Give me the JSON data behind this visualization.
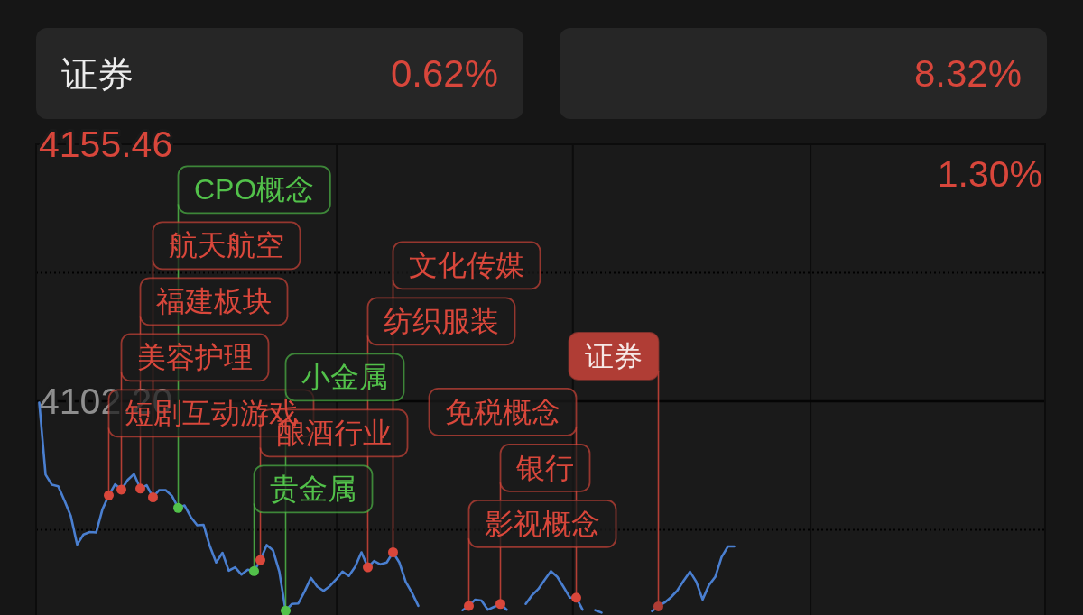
{
  "chart_data": [
    {
      "type": "other",
      "categories": [
        "证券",
        null
      ],
      "annotations": [
        "0.62%",
        "8.32%"
      ]
    },
    {
      "type": "line",
      "categories": [
        null,
        null,
        null,
        null,
        null,
        null,
        null,
        null,
        null,
        null,
        null,
        null,
        null,
        null,
        null,
        null,
        null,
        null,
        null,
        null,
        null,
        null,
        null,
        null,
        null,
        null,
        null,
        null,
        null,
        null,
        null,
        null,
        null,
        null,
        null,
        null,
        null,
        null,
        null,
        null,
        null,
        null,
        null,
        null,
        null,
        null,
        null,
        null,
        null,
        null,
        null,
        null,
        null,
        null,
        null,
        null,
        null,
        null,
        null,
        null,
        null,
        null,
        null,
        null,
        null,
        null,
        null,
        null,
        null,
        null,
        null,
        null,
        null,
        null,
        null,
        null,
        null,
        null,
        null,
        null,
        null,
        null,
        null,
        null,
        null,
        null,
        null,
        null,
        null,
        null,
        null,
        null,
        null,
        null,
        null,
        null,
        null,
        null,
        null,
        null,
        null,
        null,
        null,
        null,
        null,
        null,
        null,
        null,
        null,
        null,
        null,
        null,
        null,
        null,
        null,
        null,
        null,
        null,
        null,
        null,
        null,
        null,
        null,
        null,
        null,
        null,
        null,
        null,
        null,
        null,
        null,
        null,
        null,
        null,
        null,
        null,
        null,
        null,
        null,
        null,
        null,
        null,
        null,
        null,
        null,
        null,
        null,
        null,
        null,
        null,
        null,
        null,
        null,
        null,
        null,
        null,
        null,
        null,
        null,
        null
      ],
      "ylim": [
        4057.91,
        4155.46
      ],
      "yticks": [
        {
          "value": 4075.57,
          "label": null
        },
        {
          "value": 4102.2,
          "label": "4102.20"
        },
        {
          "value": 4128.83,
          "label": null
        },
        {
          "value": 4155.46,
          "label": "4155.46"
        }
      ],
      "grid": true,
      "tick_labels": "y",
      "ref_lines": [
        {
          "axis": "y",
          "value": 4102.2,
          "line_style": "solid"
        }
      ],
      "annotations": [
        "1.30%"
      ],
      "series": [
        {
          "color": "#4a7fd0",
          "values": [
            4101.9,
            4087.0,
            4084.9,
            4084.6,
            4081.6,
            4078.4,
            4072.5,
            4074.6,
            4075.1,
            4075.0,
            4079.8,
            4082.7,
            4085.0,
            4083.9,
            4085.9,
            4087.1,
            4084.1,
            4084.8,
            4082.3,
            4083.8,
            4083.8,
            4082.6,
            4080.1,
            4080.6,
            4078.2,
            4076.5,
            4076.6,
            4072.2,
            4068.8,
            4070.8,
            4067.1,
            4067.8,
            4066.3,
            4067.3,
            4067.0,
            4069.3,
            4072.4,
            4071.3,
            4066.9,
            4058.8,
            4060.2,
            4060.3,
            4062.8,
            4065.6,
            4063.8,
            4062.9,
            4063.9,
            4065.3,
            4066.9,
            4066.0,
            4067.9,
            4070.9,
            4067.8,
            4069.1,
            4068.4,
            4068.8,
            4070.9,
            4068.8,
            4064.8,
            4062.5,
            4059.8,
            null,
            null,
            null,
            null,
            null,
            null,
            4058.9,
            4059.8,
            4061.1,
            4060.9,
            4059.0,
            4059.6,
            4060.2,
            4059.0,
            null,
            null,
            4060.2,
            4062.0,
            4063.3,
            4065.2,
            4067.0,
            4065.8,
            4063.7,
            4061.5,
            4061.5,
            4059.0,
            null,
            4058.9,
            4058.4,
            null,
            null,
            null,
            null,
            null,
            null,
            null,
            4058.7,
            4059.7,
            4060.5,
            4061.6,
            4063.0,
            4065.0,
            4066.9,
            4064.8,
            4061.1,
            4064.1,
            4065.8,
            4069.9,
            4072.1,
            4072.1,
            null,
            null,
            null,
            null,
            null,
            null,
            null,
            null,
            null,
            null,
            null,
            null,
            null,
            null,
            null,
            null,
            null,
            null,
            null,
            null,
            null,
            null,
            null,
            null,
            null,
            null,
            null,
            null,
            null,
            null,
            null,
            null,
            null,
            null,
            null,
            null,
            null,
            null,
            null,
            null,
            null,
            null,
            null,
            null,
            null,
            null,
            null,
            null,
            null
          ]
        },
        {
          "type": "scatter",
          "color": "#d9473b",
          "values": [
            null,
            null,
            null,
            null,
            null,
            null,
            null,
            null,
            null,
            null,
            null,
            4082.7,
            null,
            4083.9,
            null,
            null,
            4084.1,
            null,
            4082.3,
            null,
            null,
            null,
            null,
            null,
            null,
            null,
            null,
            null,
            null,
            null,
            null,
            null,
            null,
            null,
            null,
            4069.3,
            null,
            null,
            null,
            null,
            null,
            null,
            null,
            null,
            null,
            null,
            null,
            null,
            null,
            null,
            null,
            null,
            4067.8,
            null,
            null,
            null,
            4070.9,
            null,
            null,
            null,
            null,
            null,
            null,
            null,
            null,
            null,
            null,
            null,
            4059.8,
            null,
            null,
            null,
            null,
            4060.2,
            null,
            null,
            null,
            null,
            null,
            null,
            null,
            null,
            null,
            null,
            null,
            4061.5,
            null,
            null,
            null,
            null,
            null,
            null,
            null,
            null,
            null,
            null,
            null,
            null,
            null,
            null,
            null,
            null,
            null,
            null,
            null,
            null,
            null,
            null,
            null,
            null,
            null,
            null,
            null,
            null,
            null,
            null,
            null,
            null,
            null,
            null,
            null,
            null,
            null,
            null,
            null,
            null,
            null,
            null,
            null,
            null,
            null,
            null,
            null,
            null,
            null,
            null,
            null,
            null,
            null,
            null,
            null,
            null,
            null,
            null,
            null,
            null,
            null,
            null,
            null,
            null,
            null,
            null,
            null,
            null,
            null,
            null,
            null,
            null,
            null,
            null
          ],
          "value_labels": [
            null,
            null,
            null,
            null,
            null,
            null,
            null,
            null,
            null,
            null,
            null,
            "短剧互动游戏",
            null,
            "美容护理",
            null,
            null,
            "福建板块",
            null,
            "航天航空",
            null,
            null,
            null,
            null,
            null,
            null,
            null,
            null,
            null,
            null,
            null,
            null,
            null,
            null,
            null,
            null,
            "酿酒行业",
            null,
            null,
            null,
            null,
            null,
            null,
            null,
            null,
            null,
            null,
            null,
            null,
            null,
            null,
            null,
            null,
            "纺织服装",
            null,
            null,
            null,
            "文化传媒",
            null,
            null,
            null,
            null,
            null,
            null,
            null,
            null,
            null,
            null,
            null,
            "影视概念",
            null,
            null,
            null,
            null,
            "银行",
            null,
            null,
            null,
            null,
            null,
            null,
            null,
            null,
            null,
            null,
            null,
            "免税概念",
            null,
            null,
            null,
            null,
            null,
            null,
            null,
            null,
            null,
            null,
            null,
            null,
            null,
            null,
            null,
            null,
            null,
            null,
            null,
            null,
            null,
            null,
            null,
            null,
            null,
            null,
            null,
            null,
            null,
            null,
            null,
            null,
            null,
            null,
            null,
            null,
            null,
            null,
            null,
            null,
            null,
            null,
            null,
            null,
            null,
            null,
            null,
            null,
            null,
            null,
            null,
            null,
            null,
            null,
            null,
            null,
            null,
            null,
            null,
            null,
            null,
            null,
            null,
            null,
            null,
            null,
            null,
            null,
            null,
            null,
            null,
            null,
            null,
            null
          ]
        },
        {
          "type": "scatter",
          "color": "#52c14a",
          "values": [
            null,
            null,
            null,
            null,
            null,
            null,
            null,
            null,
            null,
            null,
            null,
            null,
            null,
            null,
            null,
            null,
            null,
            null,
            null,
            null,
            null,
            null,
            4080.1,
            null,
            null,
            null,
            null,
            null,
            null,
            null,
            null,
            null,
            null,
            null,
            4067.0,
            null,
            null,
            null,
            null,
            4058.8,
            null,
            null,
            null,
            null,
            null,
            null,
            null,
            null,
            null,
            null,
            null,
            null,
            null,
            null,
            null,
            null,
            null,
            null,
            null,
            null,
            null,
            null,
            null,
            null,
            null,
            null,
            null,
            null,
            null,
            null,
            null,
            null,
            null,
            null,
            null,
            null,
            null,
            null,
            null,
            null,
            null,
            null,
            null,
            null,
            null,
            null,
            null,
            null,
            null,
            null,
            null,
            null,
            null,
            null,
            null,
            null,
            null,
            null,
            null,
            null,
            null,
            null,
            null,
            null,
            null,
            null,
            null,
            null,
            null,
            null,
            null,
            null,
            null,
            null,
            null,
            null,
            null,
            null,
            null,
            null,
            null,
            null,
            null,
            null,
            null,
            null,
            null,
            null,
            null,
            null,
            null,
            null,
            null,
            null,
            null,
            null,
            null,
            null,
            null,
            null,
            null,
            null,
            null,
            null,
            null,
            null,
            null,
            null,
            null,
            null,
            null,
            null,
            null,
            null,
            null,
            null,
            null,
            null,
            null,
            null
          ],
          "value_labels": [
            null,
            null,
            null,
            null,
            null,
            null,
            null,
            null,
            null,
            null,
            null,
            null,
            null,
            null,
            null,
            null,
            null,
            null,
            null,
            null,
            null,
            null,
            "CPO概念",
            null,
            null,
            null,
            null,
            null,
            null,
            null,
            null,
            null,
            null,
            null,
            "贵金属",
            null,
            null,
            null,
            null,
            "小金属",
            null,
            null,
            null,
            null,
            null,
            null,
            null,
            null,
            null,
            null,
            null,
            null,
            null,
            null,
            null,
            null,
            null,
            null,
            null,
            null,
            null,
            null,
            null,
            null,
            null,
            null,
            null,
            null,
            null,
            null,
            null,
            null,
            null,
            null,
            null,
            null,
            null,
            null,
            null,
            null,
            null,
            null,
            null,
            null,
            null,
            null,
            null,
            null,
            null,
            null,
            null,
            null,
            null,
            null,
            null,
            null,
            null,
            null,
            null,
            null,
            null,
            null,
            null,
            null,
            null,
            null,
            null,
            null,
            null,
            null,
            null,
            null,
            null,
            null,
            null,
            null,
            null,
            null,
            null,
            null,
            null,
            null,
            null,
            null,
            null,
            null,
            null,
            null,
            null,
            null,
            null,
            null,
            null,
            null,
            null,
            null,
            null,
            null,
            null,
            null,
            null,
            null,
            null,
            null,
            null,
            null,
            null,
            null,
            null,
            null,
            null,
            null,
            null,
            null,
            null,
            null,
            null,
            null,
            null,
            null
          ]
        },
        {
          "type": "scatter",
          "color": "#d9473b",
          "values": [
            null,
            null,
            null,
            null,
            null,
            null,
            null,
            null,
            null,
            null,
            null,
            null,
            null,
            null,
            null,
            null,
            null,
            null,
            null,
            null,
            null,
            null,
            null,
            null,
            null,
            null,
            null,
            null,
            null,
            null,
            null,
            null,
            null,
            null,
            null,
            null,
            null,
            null,
            null,
            null,
            null,
            null,
            null,
            null,
            null,
            null,
            null,
            null,
            null,
            null,
            null,
            null,
            null,
            null,
            null,
            null,
            null,
            null,
            null,
            null,
            null,
            null,
            null,
            null,
            null,
            null,
            null,
            null,
            null,
            null,
            null,
            null,
            null,
            null,
            null,
            null,
            null,
            null,
            null,
            null,
            null,
            null,
            null,
            null,
            null,
            null,
            null,
            null,
            null,
            null,
            null,
            null,
            null,
            null,
            null,
            null,
            null,
            null,
            4059.7,
            null,
            null,
            null,
            null,
            null,
            null,
            null,
            null,
            null,
            null,
            null,
            null,
            null,
            null,
            null,
            null,
            null,
            null,
            null,
            null,
            null,
            null,
            null,
            null,
            null,
            null,
            null,
            null,
            null,
            null,
            null,
            null,
            null,
            null,
            null,
            null,
            null,
            null,
            null,
            null,
            null,
            null,
            null,
            null,
            null,
            null,
            null,
            null,
            null,
            null,
            null,
            null,
            null,
            null,
            null,
            null,
            null,
            null,
            null,
            null,
            null
          ],
          "colors": [
            null,
            null,
            null,
            null,
            null,
            null,
            null,
            null,
            null,
            null,
            null,
            null,
            null,
            null,
            null,
            null,
            null,
            null,
            null,
            null,
            null,
            null,
            null,
            null,
            null,
            null,
            null,
            null,
            null,
            null,
            null,
            null,
            null,
            null,
            null,
            null,
            null,
            null,
            null,
            null,
            null,
            null,
            null,
            null,
            null,
            null,
            null,
            null,
            null,
            null,
            null,
            null,
            null,
            null,
            null,
            null,
            null,
            null,
            null,
            null,
            null,
            null,
            null,
            null,
            null,
            null,
            null,
            null,
            null,
            null,
            null,
            null,
            null,
            null,
            null,
            null,
            null,
            null,
            null,
            null,
            null,
            null,
            null,
            null,
            null,
            null,
            null,
            null,
            null,
            null,
            null,
            null,
            null,
            null,
            null,
            null,
            null,
            null,
            "#b03d35",
            null,
            null,
            null,
            null,
            null,
            null,
            null,
            null,
            null,
            null,
            null,
            null,
            null,
            null,
            null,
            null,
            null,
            null,
            null,
            null,
            null,
            null,
            null,
            null,
            null,
            null,
            null,
            null,
            null,
            null,
            null,
            null,
            null,
            null,
            null,
            null,
            null,
            null,
            null,
            null,
            null,
            null,
            null,
            null,
            null,
            null,
            null,
            null,
            null,
            null,
            null,
            null,
            null,
            null,
            null,
            null,
            null,
            null,
            null,
            null,
            null
          ],
          "value_labels": [
            null,
            null,
            null,
            null,
            null,
            null,
            null,
            null,
            null,
            null,
            null,
            null,
            null,
            null,
            null,
            null,
            null,
            null,
            null,
            null,
            null,
            null,
            null,
            null,
            null,
            null,
            null,
            null,
            null,
            null,
            null,
            null,
            null,
            null,
            null,
            null,
            null,
            null,
            null,
            null,
            null,
            null,
            null,
            null,
            null,
            null,
            null,
            null,
            null,
            null,
            null,
            null,
            null,
            null,
            null,
            null,
            null,
            null,
            null,
            null,
            null,
            null,
            null,
            null,
            null,
            null,
            null,
            null,
            null,
            null,
            null,
            null,
            null,
            null,
            null,
            null,
            null,
            null,
            null,
            null,
            null,
            null,
            null,
            null,
            null,
            null,
            null,
            null,
            null,
            null,
            null,
            null,
            null,
            null,
            null,
            null,
            null,
            null,
            "证券",
            null,
            null,
            null,
            null,
            null,
            null,
            null,
            null,
            null,
            null,
            null,
            null,
            null,
            null,
            null,
            null,
            null,
            null,
            null,
            null,
            null,
            null,
            null,
            null,
            null,
            null,
            null,
            null,
            null,
            null,
            null,
            null,
            null,
            null,
            null,
            null,
            null,
            null,
            null,
            null,
            null,
            null,
            null,
            null,
            null,
            null,
            null,
            null,
            null,
            null,
            null,
            null,
            null,
            null,
            null,
            null,
            null,
            null,
            null,
            null,
            null
          ]
        }
      ]
    }
  ]
}
